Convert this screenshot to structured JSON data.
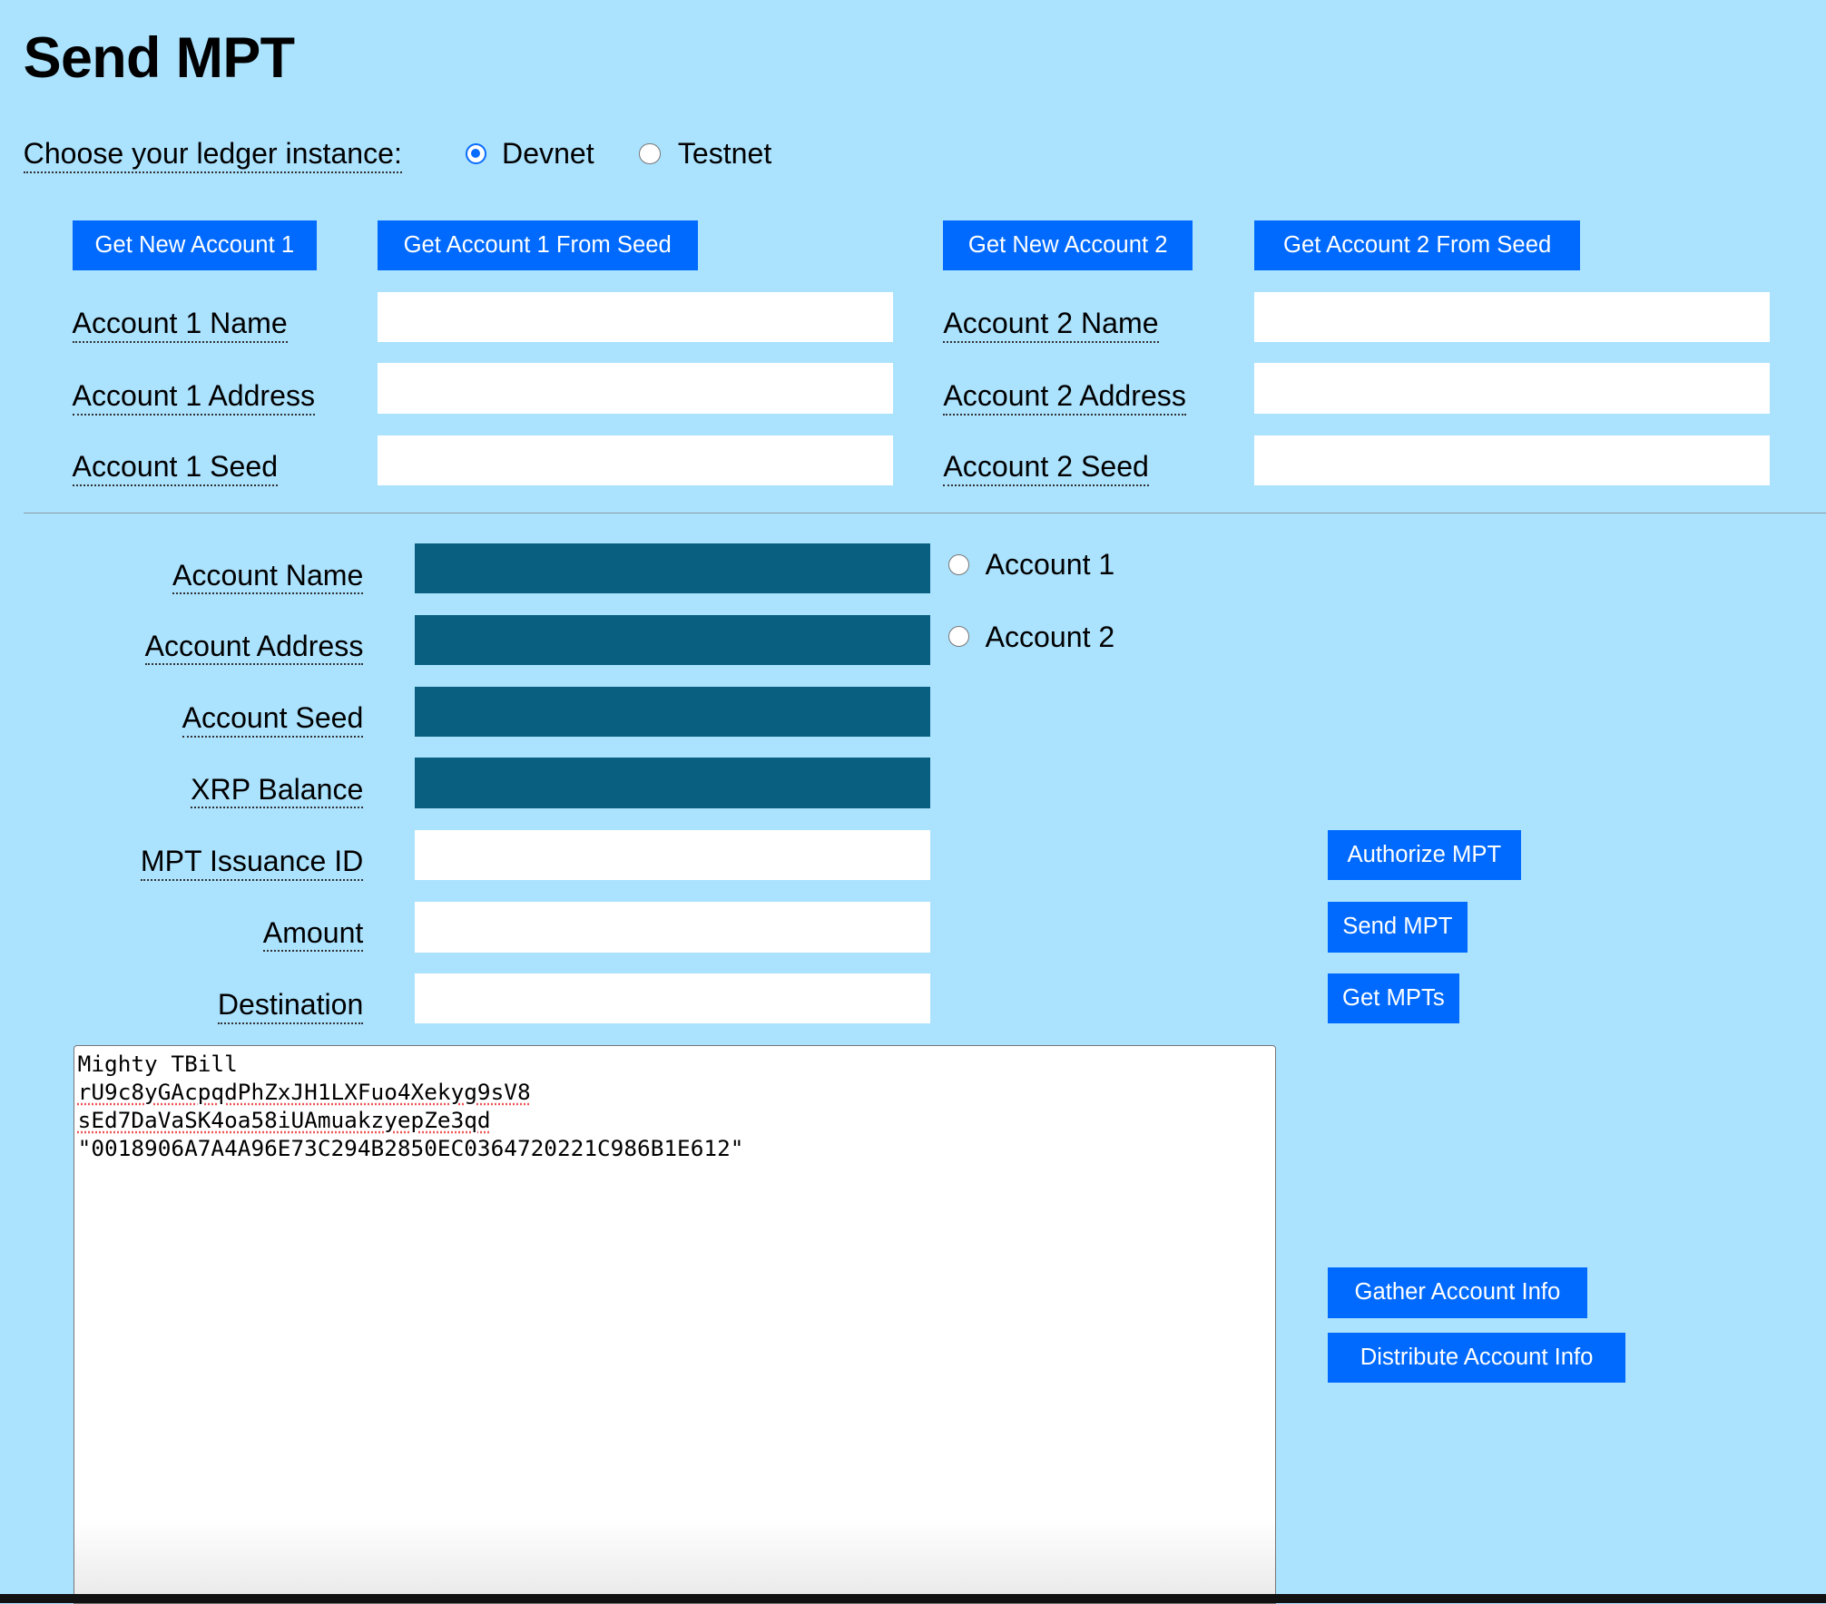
{
  "title": "Send MPT",
  "ledger": {
    "label": "Choose your ledger instance:",
    "options": [
      {
        "label": "Devnet",
        "selected": true
      },
      {
        "label": "Testnet",
        "selected": false
      }
    ]
  },
  "account1": {
    "new_button": "Get New Account 1",
    "seed_button": "Get Account 1 From Seed",
    "name_label": "Account 1 Name",
    "address_label": "Account 1 Address",
    "seed_label": "Account 1 Seed",
    "name": "",
    "address": "",
    "seed": ""
  },
  "account2": {
    "new_button": "Get New Account 2",
    "seed_button": "Get Account 2 From Seed",
    "name_label": "Account 2 Name",
    "address_label": "Account 2 Address",
    "seed_label": "Account 2 Seed",
    "name": "",
    "address": "",
    "seed": ""
  },
  "form": {
    "fields": [
      {
        "label": "Account Name",
        "value": ""
      },
      {
        "label": "Account Address",
        "value": ""
      },
      {
        "label": "Account Seed",
        "value": ""
      },
      {
        "label": "XRP Balance",
        "value": ""
      },
      {
        "label": "MPT Issuance ID",
        "value": ""
      },
      {
        "label": "Amount",
        "value": ""
      },
      {
        "label": "Destination",
        "value": ""
      }
    ],
    "account_select": [
      {
        "label": "Account 1",
        "selected": false
      },
      {
        "label": "Account 2",
        "selected": false
      }
    ]
  },
  "actions": {
    "authorize": "Authorize MPT",
    "send": "Send MPT",
    "get_mpts": "Get MPTs",
    "gather": "Gather Account Info",
    "distribute": "Distribute Account Info"
  },
  "results": {
    "lines": [
      "Mighty TBill",
      "rU9c8yGAcpqdPhZxJH1LXFuo4Xekyg9sV8",
      "sEd7DaVaSK4oa58iUAmuakzyepZe3qd",
      "\"0018906A7A4A96E73C294B2850EC0364720221C986B1E612\""
    ]
  },
  "colors": {
    "background": "#abe2fe",
    "button": "#006aff",
    "readonly_field": "#085f80"
  }
}
